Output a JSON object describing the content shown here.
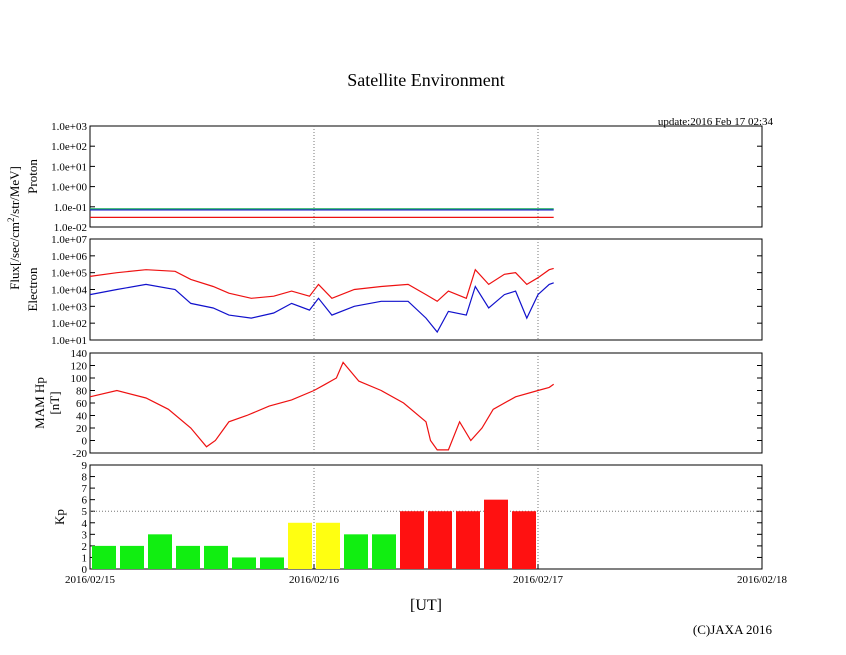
{
  "title": "Satellite Environment",
  "update": "update:2016 Feb 17 02:34",
  "copyright": "(C)JAXA 2016",
  "xlabel": "[UT]",
  "flux_label": "Flux[/sec/cm",
  "flux_sup": "2",
  "flux_label_end": "/str/MeV]",
  "x_ticks": [
    "2016/02/15",
    "2016/02/16",
    "2016/02/17",
    "2016/02/18"
  ],
  "colors": {
    "red": "#ee1111",
    "blue": "#1111cc",
    "green": "#11aa55",
    "kp_green": "#11ee11",
    "kp_yellow": "#ffff11",
    "kp_red": "#ff1111"
  },
  "chart_data": [
    {
      "type": "line",
      "ylabel": "Proton",
      "yscale": "log",
      "ylim": [
        0.01,
        1000
      ],
      "x_range_days": [
        0,
        3
      ],
      "y_ticks": [
        "1.0e+03",
        "1.0e+02",
        "1.0e+01",
        "1.0e+00",
        "1.0e-01",
        "1.0e-02"
      ],
      "series": [
        {
          "color": "red",
          "x": [
            0,
            0.5,
            1,
            1.5,
            2.07
          ],
          "y": [
            0.03,
            0.03,
            0.03,
            0.03,
            0.03
          ]
        },
        {
          "color": "blue",
          "x": [
            0,
            0.5,
            1,
            1.5,
            2.07
          ],
          "y": [
            0.07,
            0.07,
            0.07,
            0.07,
            0.07
          ]
        },
        {
          "color": "green",
          "x": [
            0,
            0.5,
            1,
            1.5,
            2.07
          ],
          "y": [
            0.08,
            0.08,
            0.08,
            0.08,
            0.08
          ]
        }
      ]
    },
    {
      "type": "line",
      "ylabel": "Electron",
      "yscale": "log",
      "ylim": [
        10,
        10000000
      ],
      "x_range_days": [
        0,
        3
      ],
      "y_ticks": [
        "1.0e+07",
        "1.0e+06",
        "1.0e+05",
        "1.0e+04",
        "1.0e+03",
        "1.0e+02",
        "1.0e+01"
      ],
      "series": [
        {
          "color": "red",
          "x": [
            0,
            0.12,
            0.25,
            0.38,
            0.45,
            0.55,
            0.62,
            0.72,
            0.82,
            0.9,
            0.98,
            1.02,
            1.08,
            1.18,
            1.3,
            1.42,
            1.5,
            1.55,
            1.6,
            1.68,
            1.72,
            1.78,
            1.85,
            1.9,
            1.95,
            2.0,
            2.05,
            2.07
          ],
          "y": [
            60000,
            100000,
            150000,
            120000,
            40000,
            15000,
            6000,
            3000,
            4000,
            8000,
            4000,
            20000,
            3000,
            10000,
            15000,
            20000,
            5000,
            2000,
            8000,
            3000,
            150000,
            20000,
            80000,
            100000,
            20000,
            50000,
            150000,
            180000
          ]
        },
        {
          "color": "blue",
          "x": [
            0,
            0.12,
            0.25,
            0.38,
            0.45,
            0.55,
            0.62,
            0.72,
            0.82,
            0.9,
            0.98,
            1.02,
            1.08,
            1.18,
            1.3,
            1.42,
            1.5,
            1.55,
            1.6,
            1.68,
            1.72,
            1.78,
            1.85,
            1.9,
            1.95,
            2.0,
            2.05,
            2.07
          ],
          "y": [
            5000,
            10000,
            20000,
            10000,
            1500,
            800,
            300,
            200,
            400,
            1500,
            600,
            3000,
            300,
            1000,
            2000,
            2000,
            200,
            30,
            500,
            300,
            15000,
            800,
            5000,
            8000,
            200,
            5000,
            20000,
            25000
          ]
        }
      ]
    },
    {
      "type": "line",
      "ylabel": "MAM Hp",
      "ylabel2": "[nT]",
      "ylim": [
        -20,
        140
      ],
      "x_range_days": [
        0,
        3
      ],
      "y_ticks": [
        "140",
        "120",
        "100",
        "80",
        "60",
        "40",
        "20",
        "0",
        "-20"
      ],
      "series": [
        {
          "color": "red",
          "x": [
            0,
            0.12,
            0.25,
            0.35,
            0.45,
            0.52,
            0.56,
            0.6,
            0.62,
            0.7,
            0.8,
            0.9,
            1.0,
            1.05,
            1.1,
            1.13,
            1.2,
            1.3,
            1.4,
            1.5,
            1.52,
            1.55,
            1.6,
            1.65,
            1.7,
            1.75,
            1.8,
            1.9,
            2.0,
            2.05,
            2.07
          ],
          "y": [
            70,
            80,
            68,
            50,
            20,
            -10,
            0,
            20,
            30,
            40,
            55,
            65,
            80,
            90,
            100,
            125,
            95,
            80,
            60,
            30,
            0,
            -15,
            -15,
            30,
            0,
            20,
            50,
            70,
            80,
            85,
            90
          ]
        }
      ]
    },
    {
      "type": "bar",
      "ylabel": "Kp",
      "ylim": [
        0,
        9
      ],
      "x_range_days": [
        0,
        3
      ],
      "y_ticks": [
        "9",
        "8",
        "7",
        "6",
        "5",
        "4",
        "3",
        "2",
        "1",
        "0"
      ],
      "values": [
        2,
        2,
        3,
        2,
        2,
        1,
        1,
        4,
        4,
        3,
        3,
        5,
        5,
        5,
        6,
        5
      ],
      "bar_colors": [
        "green",
        "green",
        "green",
        "green",
        "green",
        "green",
        "green",
        "yellow",
        "yellow",
        "green",
        "green",
        "red",
        "red",
        "red",
        "red",
        "red"
      ]
    }
  ]
}
